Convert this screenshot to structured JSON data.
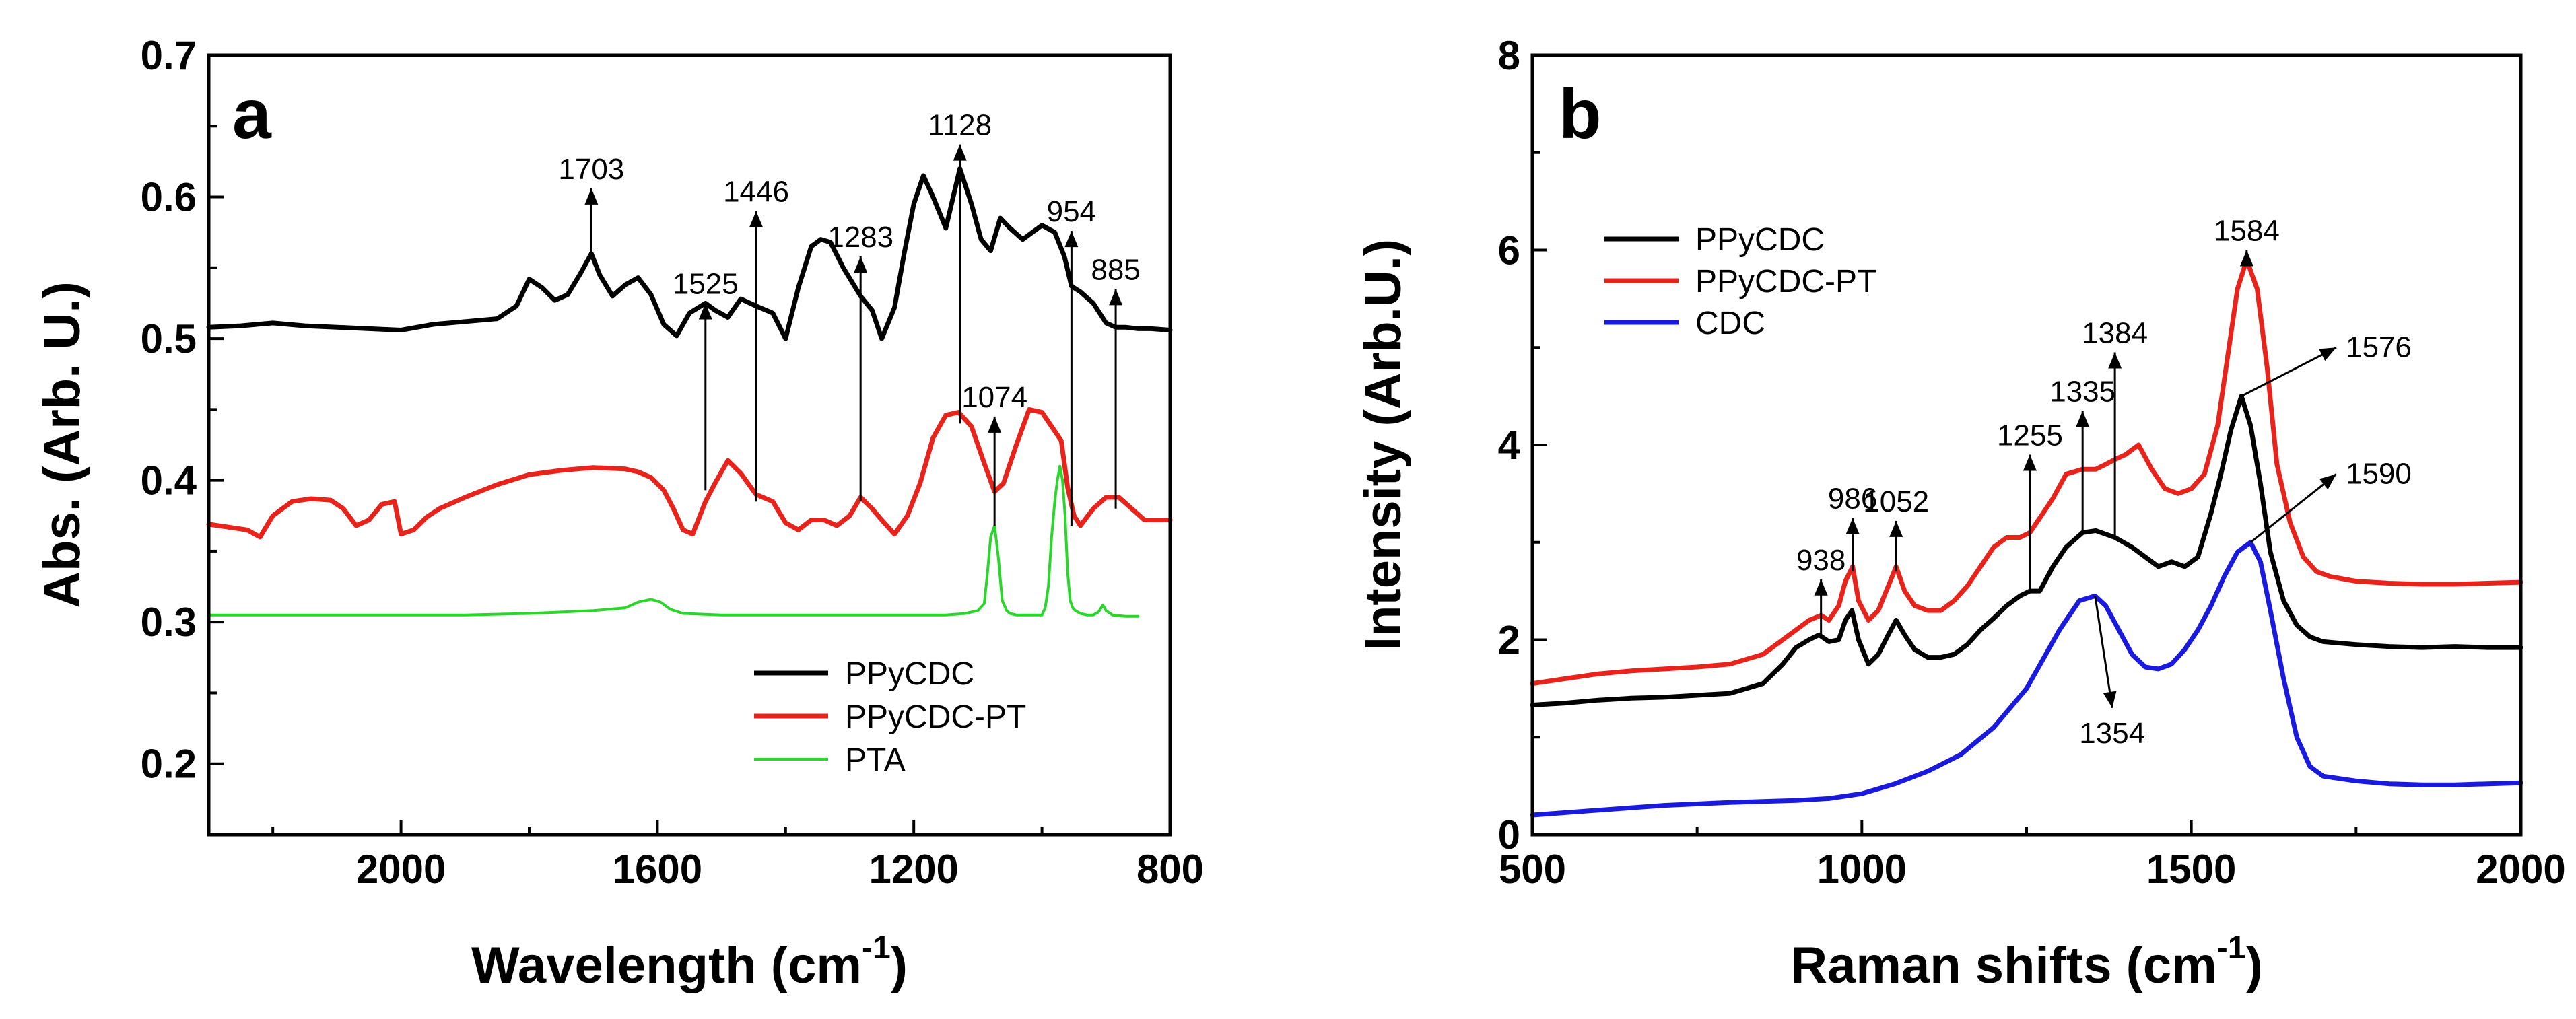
{
  "colors": {
    "PPyCDC": "#000000",
    "PPyCDC-PT": "#e8231b",
    "PTA": "#2bd62b",
    "CDC": "#1a1adf"
  },
  "chart_data": [
    {
      "panel_label": "a",
      "type": "line",
      "xlabel": "Wavelength (cm",
      "xlabel_sup": "-1",
      "xlabel_close": ")",
      "ylabel": "Abs. (Arb. U.)",
      "xlim": [
        2300,
        800
      ],
      "ylim": [
        0.15,
        0.7
      ],
      "xticks": [
        2000,
        1600,
        1200,
        800
      ],
      "xtick_labels": [
        "2000",
        "1600",
        "1200",
        "800"
      ],
      "yticks": [
        0.2,
        0.3,
        0.4,
        0.5,
        0.6,
        0.7
      ],
      "ytick_labels": [
        "0.2",
        "0.3",
        "0.4",
        "0.5",
        "0.6",
        "0.7"
      ],
      "legend_position": "bottom-right",
      "series": [
        {
          "name": "PPyCDC",
          "color_key": "PPyCDC",
          "width": 7,
          "x": [
            2300,
            2250,
            2200,
            2150,
            2100,
            2050,
            2000,
            1950,
            1900,
            1850,
            1820,
            1800,
            1780,
            1760,
            1740,
            1720,
            1703,
            1690,
            1670,
            1650,
            1630,
            1610,
            1590,
            1570,
            1550,
            1525,
            1510,
            1490,
            1470,
            1446,
            1420,
            1400,
            1380,
            1360,
            1345,
            1330,
            1310,
            1283,
            1265,
            1250,
            1230,
            1215,
            1200,
            1185,
            1170,
            1150,
            1128,
            1110,
            1095,
            1080,
            1065,
            1050,
            1030,
            1000,
            980,
            965,
            954,
            940,
            920,
            900,
            885,
            870,
            850,
            830,
            800
          ],
          "y": [
            0.508,
            0.509,
            0.511,
            0.509,
            0.508,
            0.507,
            0.506,
            0.51,
            0.512,
            0.514,
            0.523,
            0.542,
            0.536,
            0.527,
            0.531,
            0.546,
            0.56,
            0.545,
            0.53,
            0.538,
            0.543,
            0.531,
            0.51,
            0.502,
            0.518,
            0.525,
            0.52,
            0.515,
            0.528,
            0.523,
            0.518,
            0.5,
            0.536,
            0.565,
            0.57,
            0.568,
            0.55,
            0.53,
            0.52,
            0.5,
            0.522,
            0.56,
            0.595,
            0.615,
            0.6,
            0.578,
            0.62,
            0.595,
            0.57,
            0.562,
            0.585,
            0.578,
            0.57,
            0.58,
            0.575,
            0.558,
            0.537,
            0.533,
            0.525,
            0.511,
            0.508,
            0.508,
            0.507,
            0.507,
            0.506
          ]
        },
        {
          "name": "PPyCDC-PT",
          "color_key": "PPyCDC-PT",
          "width": 7,
          "x": [
            2300,
            2270,
            2240,
            2220,
            2200,
            2170,
            2140,
            2110,
            2090,
            2070,
            2050,
            2030,
            2010,
            2000,
            1980,
            1960,
            1940,
            1900,
            1850,
            1800,
            1750,
            1700,
            1650,
            1630,
            1610,
            1590,
            1575,
            1560,
            1545,
            1525,
            1510,
            1490,
            1470,
            1446,
            1420,
            1400,
            1380,
            1360,
            1340,
            1320,
            1300,
            1283,
            1265,
            1250,
            1230,
            1210,
            1190,
            1170,
            1150,
            1130,
            1110,
            1090,
            1074,
            1060,
            1040,
            1020,
            1000,
            985,
            970,
            960,
            950,
            940,
            920,
            900,
            880,
            860,
            840,
            820,
            800
          ],
          "y": [
            0.369,
            0.367,
            0.365,
            0.36,
            0.375,
            0.385,
            0.387,
            0.386,
            0.38,
            0.368,
            0.372,
            0.383,
            0.385,
            0.362,
            0.365,
            0.374,
            0.38,
            0.388,
            0.397,
            0.404,
            0.407,
            0.409,
            0.408,
            0.406,
            0.402,
            0.393,
            0.38,
            0.365,
            0.362,
            0.385,
            0.398,
            0.414,
            0.405,
            0.39,
            0.385,
            0.37,
            0.365,
            0.372,
            0.372,
            0.368,
            0.375,
            0.388,
            0.38,
            0.372,
            0.362,
            0.375,
            0.398,
            0.43,
            0.446,
            0.448,
            0.438,
            0.412,
            0.392,
            0.398,
            0.425,
            0.45,
            0.448,
            0.438,
            0.428,
            0.395,
            0.375,
            0.368,
            0.38,
            0.388,
            0.388,
            0.38,
            0.372,
            0.372,
            0.372
          ]
        },
        {
          "name": "PTA",
          "color_key": "PTA",
          "width": 4,
          "x": [
            2300,
            2200,
            2100,
            2000,
            1900,
            1800,
            1700,
            1650,
            1630,
            1610,
            1595,
            1580,
            1560,
            1500,
            1400,
            1300,
            1200,
            1150,
            1120,
            1100,
            1090,
            1085,
            1080,
            1074,
            1068,
            1062,
            1055,
            1050,
            1040,
            1030,
            1020,
            1010,
            1000,
            995,
            990,
            985,
            980,
            976,
            972,
            968,
            964,
            960,
            956,
            952,
            948,
            944,
            940,
            930,
            920,
            912,
            905,
            900,
            890,
            870,
            850
          ],
          "y": [
            0.305,
            0.305,
            0.305,
            0.305,
            0.305,
            0.306,
            0.308,
            0.31,
            0.314,
            0.316,
            0.314,
            0.309,
            0.306,
            0.305,
            0.305,
            0.305,
            0.305,
            0.305,
            0.306,
            0.308,
            0.313,
            0.335,
            0.36,
            0.368,
            0.345,
            0.315,
            0.308,
            0.306,
            0.305,
            0.305,
            0.305,
            0.305,
            0.305,
            0.31,
            0.325,
            0.36,
            0.385,
            0.4,
            0.41,
            0.4,
            0.375,
            0.335,
            0.315,
            0.31,
            0.308,
            0.307,
            0.306,
            0.305,
            0.305,
            0.307,
            0.312,
            0.308,
            0.305,
            0.304,
            0.304
          ]
        }
      ],
      "annotations": [
        {
          "label": "1703",
          "x": 1703,
          "y_from": 0.558,
          "y_to": 0.606,
          "label_side": "top"
        },
        {
          "label": "1525",
          "x": 1525,
          "y_from": 0.393,
          "y_to": 0.525,
          "label_side": "top"
        },
        {
          "label": "1446",
          "x": 1446,
          "y_from": 0.385,
          "y_to": 0.59,
          "label_side": "top"
        },
        {
          "label": "1283",
          "x": 1283,
          "y_from": 0.385,
          "y_to": 0.558,
          "label_side": "top"
        },
        {
          "label": "1128",
          "x": 1128,
          "y_from": 0.44,
          "y_to": 0.637,
          "label_side": "top"
        },
        {
          "label": "1074",
          "x": 1074,
          "y_from": 0.368,
          "y_to": 0.445,
          "label_side": "top"
        },
        {
          "label": "954",
          "x": 954,
          "y_from": 0.368,
          "y_to": 0.576,
          "label_side": "top"
        },
        {
          "label": "885",
          "x": 885,
          "y_from": 0.38,
          "y_to": 0.535,
          "label_side": "top"
        }
      ]
    },
    {
      "panel_label": "b",
      "type": "line",
      "xlabel": "Raman shifts (cm",
      "xlabel_sup": "-1",
      "xlabel_close": ")",
      "ylabel": "Intensity (Arb.U.)",
      "xlim": [
        500,
        2000
      ],
      "ylim": [
        0,
        8
      ],
      "xticks": [
        500,
        1000,
        1500,
        2000
      ],
      "xtick_labels": [
        "500",
        "1000",
        "1500",
        "2000"
      ],
      "yticks": [
        0,
        2,
        4,
        6,
        8
      ],
      "ytick_labels": [
        "0",
        "2",
        "4",
        "6",
        "8"
      ],
      "legend_position": "top-left",
      "series": [
        {
          "name": "PPyCDC",
          "color_key": "PPyCDC",
          "width": 7,
          "x": [
            500,
            550,
            600,
            650,
            700,
            750,
            800,
            850,
            880,
            900,
            920,
            935,
            950,
            965,
            975,
            985,
            995,
            1010,
            1025,
            1040,
            1052,
            1065,
            1080,
            1100,
            1120,
            1140,
            1160,
            1180,
            1200,
            1220,
            1240,
            1255,
            1270,
            1290,
            1310,
            1335,
            1355,
            1384,
            1410,
            1430,
            1450,
            1470,
            1490,
            1510,
            1530,
            1545,
            1560,
            1576,
            1590,
            1605,
            1620,
            1640,
            1660,
            1680,
            1700,
            1750,
            1800,
            1850,
            1900,
            1950,
            2000
          ],
          "y": [
            1.33,
            1.35,
            1.38,
            1.4,
            1.41,
            1.43,
            1.45,
            1.55,
            1.75,
            1.92,
            2.0,
            2.05,
            1.98,
            2.0,
            2.2,
            2.3,
            2.0,
            1.75,
            1.85,
            2.05,
            2.2,
            2.05,
            1.9,
            1.82,
            1.82,
            1.85,
            1.95,
            2.1,
            2.22,
            2.35,
            2.45,
            2.5,
            2.5,
            2.75,
            2.95,
            3.1,
            3.12,
            3.05,
            2.95,
            2.85,
            2.75,
            2.8,
            2.75,
            2.85,
            3.3,
            3.7,
            4.15,
            4.5,
            4.2,
            3.6,
            2.9,
            2.4,
            2.15,
            2.03,
            1.98,
            1.95,
            1.93,
            1.92,
            1.93,
            1.92,
            1.92
          ]
        },
        {
          "name": "PPyCDC-PT",
          "color_key": "PPyCDC-PT",
          "width": 7,
          "x": [
            500,
            550,
            600,
            650,
            700,
            750,
            800,
            850,
            880,
            900,
            920,
            938,
            950,
            965,
            975,
            986,
            995,
            1010,
            1025,
            1040,
            1052,
            1065,
            1080,
            1100,
            1120,
            1140,
            1160,
            1180,
            1200,
            1220,
            1240,
            1255,
            1270,
            1290,
            1310,
            1335,
            1355,
            1370,
            1384,
            1400,
            1420,
            1440,
            1460,
            1480,
            1500,
            1520,
            1540,
            1555,
            1570,
            1584,
            1600,
            1615,
            1630,
            1650,
            1670,
            1690,
            1710,
            1750,
            1800,
            1850,
            1900,
            1950,
            2000
          ],
          "y": [
            1.55,
            1.6,
            1.65,
            1.68,
            1.7,
            1.72,
            1.75,
            1.85,
            2.0,
            2.1,
            2.2,
            2.25,
            2.2,
            2.35,
            2.6,
            2.75,
            2.4,
            2.2,
            2.3,
            2.55,
            2.75,
            2.5,
            2.35,
            2.3,
            2.3,
            2.4,
            2.55,
            2.75,
            2.95,
            3.05,
            3.05,
            3.1,
            3.25,
            3.45,
            3.7,
            3.75,
            3.75,
            3.8,
            3.85,
            3.9,
            4.0,
            3.75,
            3.55,
            3.5,
            3.55,
            3.7,
            4.2,
            4.9,
            5.6,
            5.9,
            5.6,
            4.8,
            3.8,
            3.2,
            2.85,
            2.7,
            2.65,
            2.6,
            2.58,
            2.57,
            2.57,
            2.58,
            2.59
          ]
        },
        {
          "name": "CDC",
          "color_key": "CDC",
          "width": 7,
          "x": [
            500,
            600,
            700,
            800,
            900,
            950,
            1000,
            1050,
            1100,
            1150,
            1200,
            1250,
            1300,
            1330,
            1354,
            1370,
            1390,
            1410,
            1430,
            1450,
            1470,
            1490,
            1510,
            1530,
            1550,
            1570,
            1590,
            1605,
            1620,
            1640,
            1660,
            1680,
            1700,
            1750,
            1800,
            1850,
            1900,
            1950,
            2000
          ],
          "y": [
            0.2,
            0.25,
            0.3,
            0.33,
            0.35,
            0.37,
            0.42,
            0.52,
            0.65,
            0.82,
            1.1,
            1.5,
            2.1,
            2.4,
            2.45,
            2.35,
            2.1,
            1.85,
            1.72,
            1.7,
            1.75,
            1.9,
            2.1,
            2.35,
            2.65,
            2.9,
            3.0,
            2.8,
            2.3,
            1.6,
            1.0,
            0.7,
            0.6,
            0.55,
            0.52,
            0.51,
            0.51,
            0.52,
            0.53
          ]
        }
      ],
      "annotations": [
        {
          "label": "938",
          "x": 938,
          "y_from": 2.05,
          "y_to": 2.62,
          "label_side": "top"
        },
        {
          "label": "986",
          "x": 986,
          "y_from": 2.7,
          "y_to": 3.25,
          "label_side": "top"
        },
        {
          "label": "1052",
          "x": 1052,
          "y_from": 2.7,
          "y_to": 3.22,
          "label_side": "top"
        },
        {
          "label": "1255",
          "x": 1255,
          "y_from": 2.5,
          "y_to": 3.9,
          "label_side": "top"
        },
        {
          "label": "1335",
          "x": 1335,
          "y_from": 3.1,
          "y_to": 4.35,
          "label_side": "top"
        },
        {
          "label": "1384",
          "x": 1384,
          "y_from": 3.05,
          "y_to": 4.95,
          "label_side": "top"
        },
        {
          "label": "1584",
          "x": 1584,
          "y_from": 5.9,
          "y_to": 6.0,
          "label_side": "top"
        },
        {
          "label": "1576",
          "x": 1576,
          "y_from": 4.5,
          "y_to": 5.0,
          "label_side": "right",
          "x_to": 1720
        },
        {
          "label": "1590",
          "x": 1590,
          "y_from": 3.0,
          "y_to": 3.7,
          "label_side": "right",
          "x_to": 1720
        },
        {
          "label": "1354",
          "x": 1354,
          "y_from": 2.45,
          "y_to": 1.3,
          "label_side": "bottom",
          "x_to": 1380
        }
      ]
    }
  ]
}
